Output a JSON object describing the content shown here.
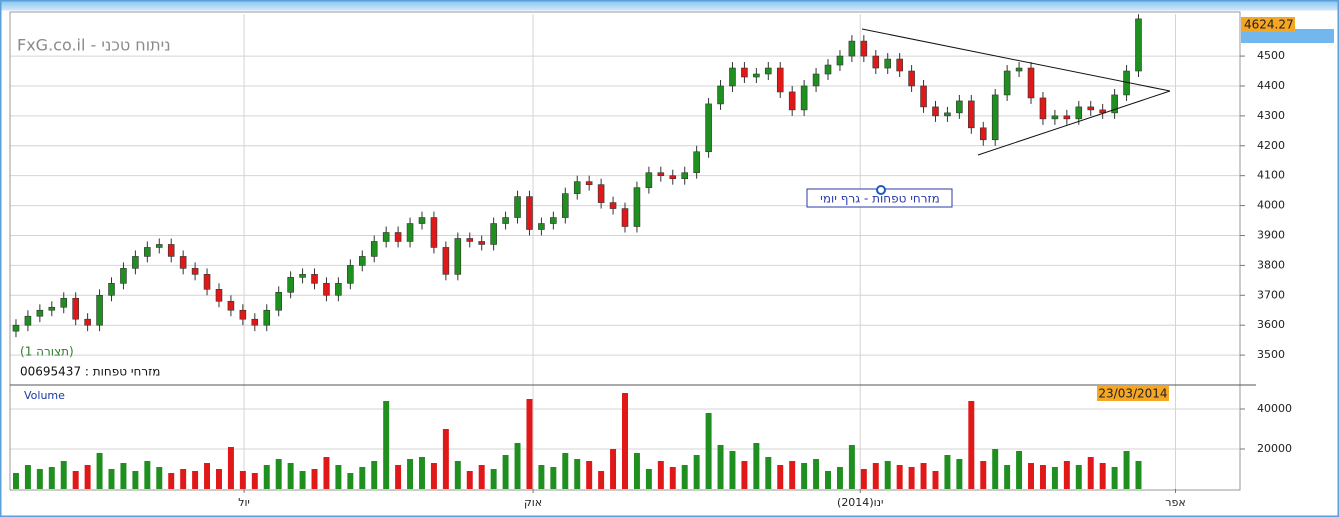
{
  "chart_data": {
    "type": "candlestick",
    "title": "ניתוח טכני - FxG.co.il",
    "subtitle": "(תצורה 1)",
    "instrument": "מזרחי טפחות : 00695437",
    "chart_label": "מזרחי טפחות - גרף יומי",
    "last_price": "4624.27",
    "last_date": "23/03/2014",
    "volume_title": "Volume",
    "up_color": "#1f8f1f",
    "down_color": "#e01818",
    "grid": true,
    "xlim": [
      -0.5,
      102.5
    ],
    "xticks": [
      {
        "value": 19.1,
        "label": "יול"
      },
      {
        "value": 43.3,
        "label": "אוק"
      },
      {
        "value": 70.7,
        "label": "ינו(2014)"
      },
      {
        "value": 97.1,
        "label": "אפר"
      }
    ],
    "ylim": [
      3400,
      4640
    ],
    "yticks": [
      3500,
      3600,
      3700,
      3800,
      3900,
      4000,
      4100,
      4200,
      4300,
      4400,
      4500
    ],
    "volume_ylim": [
      0,
      52000
    ],
    "volume_yticks": [
      20000,
      40000
    ],
    "open": [
      3580,
      3600,
      3630,
      3650,
      3660,
      3690,
      3620,
      3600,
      3700,
      3740,
      3790,
      3830,
      3860,
      3870,
      3830,
      3790,
      3770,
      3720,
      3680,
      3650,
      3620,
      3600,
      3650,
      3710,
      3760,
      3770,
      3740,
      3700,
      3740,
      3800,
      3830,
      3880,
      3910,
      3880,
      3940,
      3960,
      3860,
      3770,
      3890,
      3880,
      3870,
      3940,
      3960,
      4030,
      3920,
      3940,
      3960,
      4040,
      4080,
      4070,
      4010,
      3990,
      3930,
      4060,
      4110,
      4100,
      4090,
      4110,
      4180,
      4340,
      4400,
      4460,
      4430,
      4440,
      4460,
      4380,
      4320,
      4400,
      4440,
      4470,
      4500,
      4550,
      4500,
      4460,
      4490,
      4450,
      4400,
      4330,
      4300,
      4310,
      4350,
      4260,
      4220,
      4370,
      4450,
      4460,
      4360,
      4290,
      4300,
      4290,
      4330,
      4320,
      4310,
      4370,
      4450
    ],
    "high": [
      3620,
      3650,
      3670,
      3680,
      3710,
      3710,
      3640,
      3720,
      3760,
      3810,
      3850,
      3880,
      3890,
      3890,
      3850,
      3810,
      3790,
      3740,
      3700,
      3670,
      3640,
      3670,
      3730,
      3780,
      3790,
      3790,
      3760,
      3760,
      3820,
      3850,
      3900,
      3930,
      3930,
      3960,
      3980,
      3980,
      3880,
      3910,
      3910,
      3900,
      3960,
      3980,
      4050,
      4050,
      3960,
      3980,
      4060,
      4100,
      4100,
      4090,
      4030,
      4010,
      4080,
      4130,
      4130,
      4120,
      4130,
      4200,
      4360,
      4420,
      4480,
      4480,
      4460,
      4480,
      4480,
      4400,
      4420,
      4460,
      4490,
      4520,
      4570,
      4570,
      4520,
      4510,
      4510,
      4470,
      4420,
      4350,
      4330,
      4370,
      4370,
      4280,
      4390,
      4470,
      4480,
      4480,
      4380,
      4320,
      4320,
      4350,
      4350,
      4340,
      4390,
      4470,
      4640
    ],
    "low": [
      3560,
      3580,
      3610,
      3630,
      3640,
      3600,
      3580,
      3580,
      3680,
      3720,
      3770,
      3810,
      3840,
      3810,
      3770,
      3750,
      3700,
      3660,
      3630,
      3600,
      3580,
      3580,
      3630,
      3690,
      3740,
      3720,
      3680,
      3680,
      3720,
      3780,
      3810,
      3860,
      3860,
      3860,
      3920,
      3840,
      3750,
      3750,
      3860,
      3850,
      3850,
      3920,
      3940,
      3900,
      3900,
      3920,
      3940,
      4020,
      4050,
      3990,
      3970,
      3910,
      3910,
      4040,
      4080,
      4070,
      4070,
      4090,
      4160,
      4320,
      4380,
      4410,
      4410,
      4420,
      4360,
      4300,
      4300,
      4380,
      4420,
      4450,
      4480,
      4480,
      4440,
      4440,
      4430,
      4380,
      4310,
      4280,
      4280,
      4290,
      4240,
      4200,
      4200,
      4350,
      4430,
      4340,
      4270,
      4270,
      4270,
      4270,
      4300,
      4290,
      4290,
      4350,
      4430
    ],
    "close": [
      3600,
      3630,
      3650,
      3660,
      3690,
      3620,
      3600,
      3700,
      3740,
      3790,
      3830,
      3860,
      3870,
      3830,
      3790,
      3770,
      3720,
      3680,
      3650,
      3620,
      3600,
      3650,
      3710,
      3760,
      3770,
      3740,
      3700,
      3740,
      3800,
      3830,
      3880,
      3910,
      3880,
      3940,
      3960,
      3860,
      3770,
      3890,
      3880,
      3870,
      3940,
      3960,
      4030,
      3920,
      3940,
      3960,
      4040,
      4080,
      4070,
      4010,
      3990,
      3930,
      4060,
      4110,
      4100,
      4090,
      4110,
      4180,
      4340,
      4400,
      4460,
      4430,
      4440,
      4460,
      4380,
      4320,
      4400,
      4440,
      4470,
      4500,
      4550,
      4500,
      4460,
      4490,
      4450,
      4400,
      4330,
      4300,
      4310,
      4350,
      4260,
      4220,
      4370,
      4450,
      4460,
      4360,
      4290,
      4300,
      4290,
      4330,
      4320,
      4310,
      4370,
      4450,
      4624.27
    ],
    "volume": [
      8000,
      12000,
      10000,
      11000,
      14000,
      9000,
      12000,
      18000,
      10000,
      13000,
      9000,
      14000,
      11000,
      8000,
      10000,
      9000,
      13000,
      10000,
      21000,
      9000,
      8000,
      12000,
      15000,
      13000,
      9000,
      10000,
      16000,
      12000,
      8000,
      11000,
      14000,
      44000,
      12000,
      15000,
      16000,
      13000,
      30000,
      14000,
      9000,
      12000,
      10000,
      17000,
      23000,
      45000,
      12000,
      11000,
      18000,
      15000,
      14000,
      9000,
      20000,
      48000,
      18000,
      10000,
      14000,
      11000,
      12000,
      17000,
      38000,
      22000,
      19000,
      14000,
      23000,
      16000,
      12000,
      14000,
      13000,
      15000,
      9000,
      11000,
      22000,
      10000,
      13000,
      14000,
      12000,
      11000,
      13000,
      9000,
      17000,
      15000,
      44000,
      14000,
      20000,
      12000,
      19000,
      13000,
      12000,
      11000,
      14000,
      12000,
      16000,
      13000,
      11000,
      19000,
      14000
    ]
  }
}
